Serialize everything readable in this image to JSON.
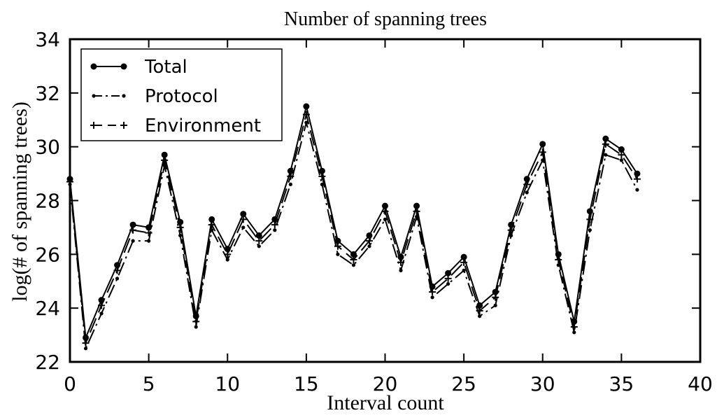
{
  "chart_data": {
    "type": "line",
    "title": "Number of spanning trees",
    "xlabel": "Interval count",
    "ylabel": "log(# of spanning trees)",
    "xlim": [
      0,
      40
    ],
    "ylim": [
      22,
      34
    ],
    "xticks": [
      0,
      5,
      10,
      15,
      20,
      25,
      30,
      35,
      40
    ],
    "yticks": [
      22,
      24,
      26,
      28,
      30,
      32,
      34
    ],
    "grid": false,
    "legend_position": "top-left",
    "x": [
      0,
      1,
      2,
      3,
      4,
      5,
      6,
      7,
      8,
      9,
      10,
      11,
      12,
      13,
      14,
      15,
      16,
      17,
      18,
      19,
      20,
      21,
      22,
      23,
      24,
      25,
      26,
      27,
      28,
      29,
      30,
      31,
      32,
      33,
      34,
      35,
      36
    ],
    "series": [
      {
        "name": "Total",
        "style": "solid",
        "marker": "circle",
        "values": [
          28.8,
          22.9,
          24.3,
          25.6,
          27.1,
          27.0,
          29.7,
          27.2,
          23.7,
          27.3,
          26.2,
          27.5,
          26.7,
          27.3,
          29.1,
          31.5,
          29.1,
          26.5,
          26.0,
          26.7,
          27.8,
          25.9,
          27.8,
          24.8,
          25.3,
          25.9,
          24.1,
          24.6,
          27.1,
          28.8,
          30.1,
          26.0,
          23.5,
          27.6,
          30.3,
          29.9,
          29.0
        ]
      },
      {
        "name": "Protocol",
        "style": "dashdot",
        "marker": "dot",
        "values": [
          28.6,
          22.5,
          23.8,
          25.1,
          26.5,
          26.5,
          29.3,
          26.7,
          23.3,
          26.9,
          25.8,
          27.0,
          26.3,
          26.9,
          28.6,
          30.9,
          28.6,
          26.0,
          25.6,
          26.3,
          27.3,
          25.4,
          27.4,
          24.4,
          24.9,
          25.4,
          23.7,
          24.1,
          26.7,
          28.3,
          29.5,
          25.6,
          23.1,
          26.9,
          29.7,
          29.5,
          28.4
        ]
      },
      {
        "name": "Environment",
        "style": "dashed",
        "marker": "plus",
        "values": [
          28.7,
          22.7,
          24.1,
          25.4,
          26.9,
          26.8,
          29.5,
          27.0,
          23.5,
          27.1,
          26.0,
          27.3,
          26.5,
          27.1,
          28.9,
          31.2,
          28.9,
          26.3,
          25.8,
          26.5,
          27.6,
          25.7,
          27.6,
          24.6,
          25.1,
          25.7,
          23.9,
          24.4,
          26.9,
          28.6,
          29.8,
          25.8,
          23.3,
          27.3,
          30.1,
          29.7,
          28.8
        ]
      }
    ]
  }
}
